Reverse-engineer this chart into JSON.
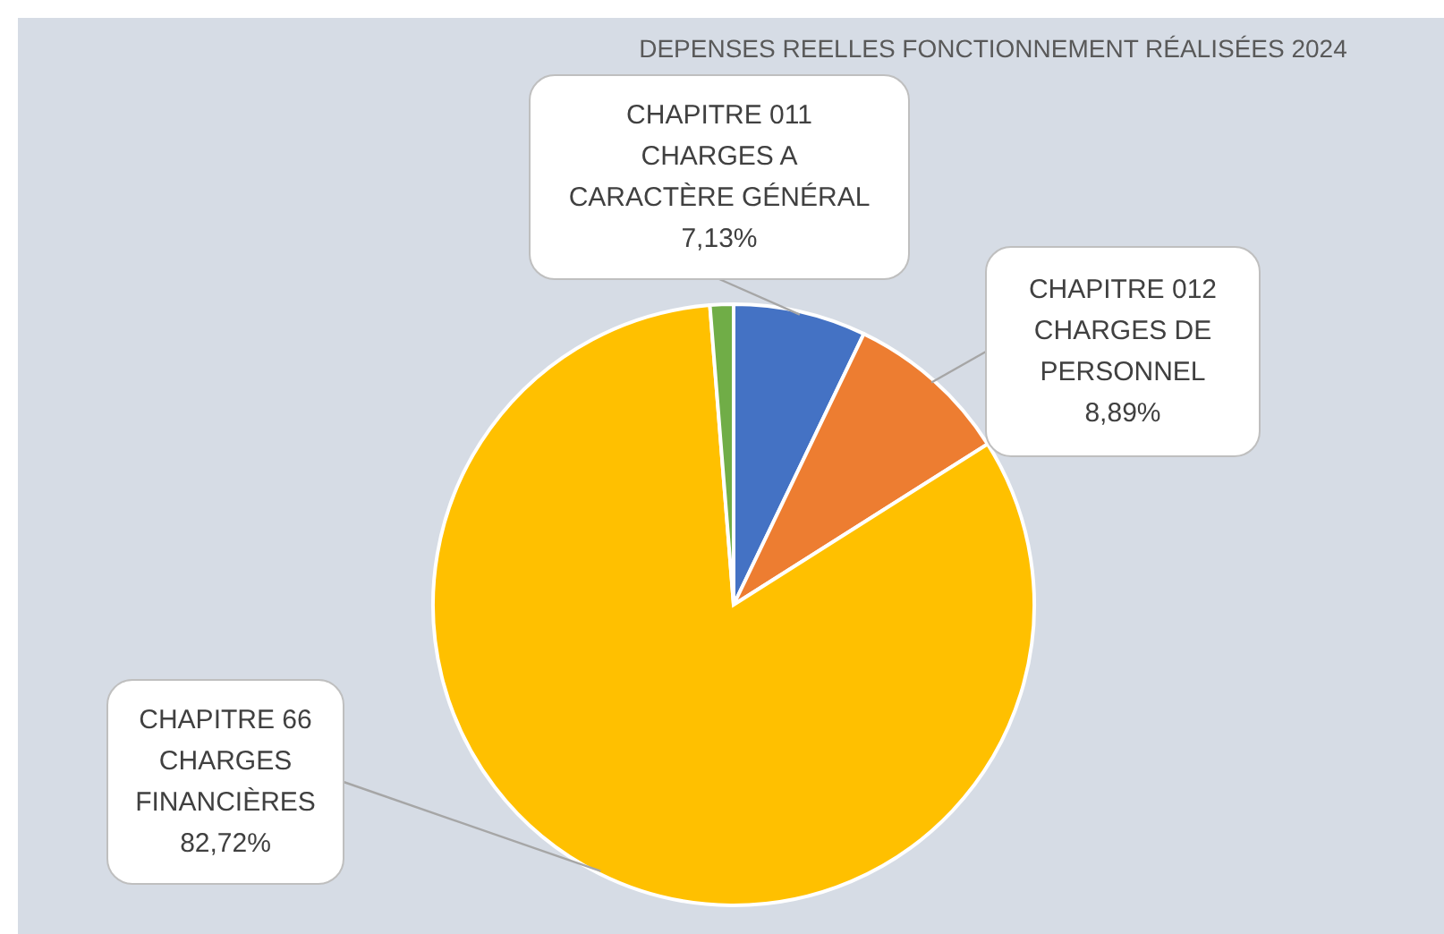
{
  "chart_data": {
    "type": "pie",
    "title": "DEPENSES REELLES FONCTIONNEMENT RÉALISÉES 2024",
    "categories": [
      "CHAPITRE 011\nCHARGES A\nCARACTÈRE GÉNÉRAL",
      "CHAPITRE 012\nCHARGES DE\nPERSONNEL",
      "CHAPITRE 66\nCHARGES\nFINANCIÈRES",
      null
    ],
    "values": [
      7.13,
      8.89,
      82.72,
      1.26
    ],
    "value_labels": [
      "7,13%",
      "8,89%",
      "82,72%",
      null
    ],
    "colors": [
      "#4472c4",
      "#ed7d31",
      "#ffc000",
      "#70ad47"
    ]
  }
}
